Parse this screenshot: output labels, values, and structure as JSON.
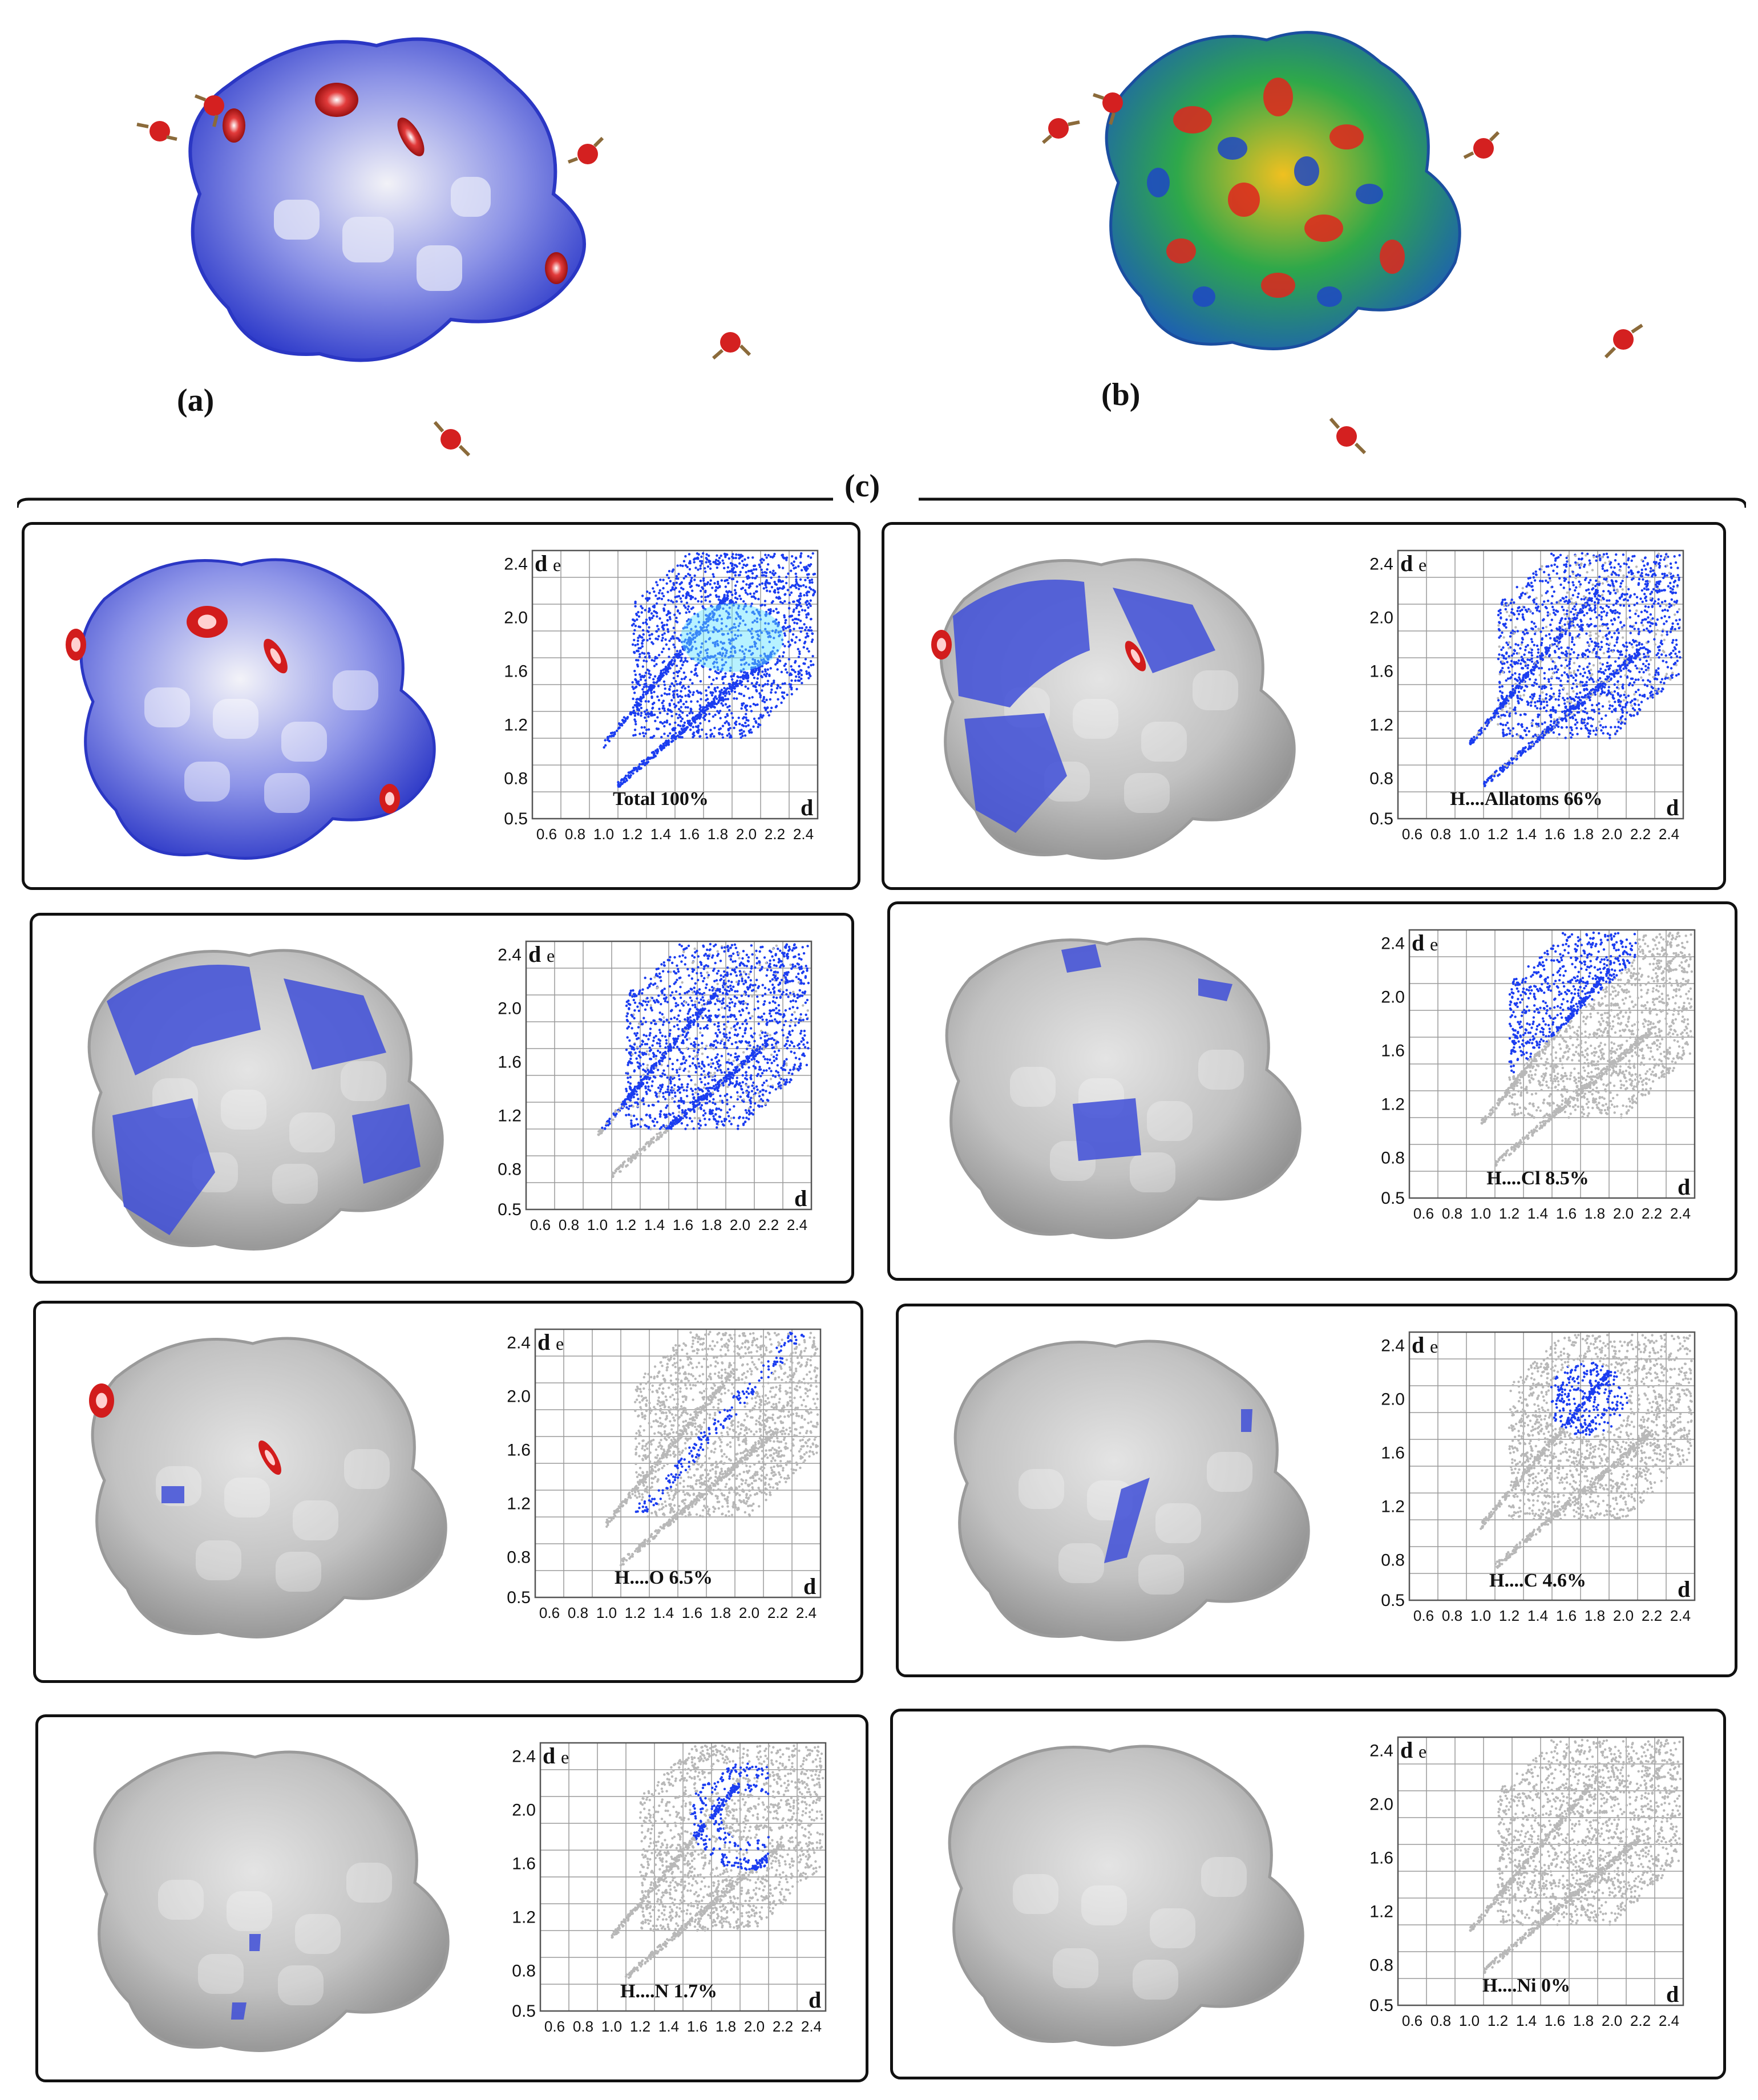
{
  "figure": {
    "top_labels": {
      "a": "(a)",
      "b": "(b)",
      "c": "(c)"
    },
    "colors": {
      "dnorm_surface": "#3f4fd8",
      "dnorm_hot": "#d21c1c",
      "shape_index_green": "#2ea84a",
      "grey_surface": "#bdbdbd",
      "fingerprint_blue": "#1b3df0",
      "fingerprint_grey": "#b8b8b8"
    }
  },
  "chart_data": [
    {
      "type": "scatter",
      "label": "Total 100%",
      "highlight": "all",
      "x_ticks": [
        "0.6",
        "0.8",
        "1.0",
        "1.2",
        "1.4",
        "1.6",
        "1.8",
        "2.0",
        "2.2",
        "2.4"
      ],
      "y_ticks": [
        "0.5",
        "0.8",
        "1.2",
        "1.6",
        "2.0",
        "2.4"
      ],
      "xlim": [
        0.5,
        2.5
      ],
      "ylim": [
        0.5,
        2.5
      ]
    },
    {
      "type": "scatter",
      "label": "H....Allatoms 66%",
      "highlight": "broad",
      "x_ticks": [
        "0.6",
        "0.8",
        "1.0",
        "1.2",
        "1.4",
        "1.6",
        "1.8",
        "2.0",
        "2.2",
        "2.4"
      ],
      "y_ticks": [
        "0.5",
        "0.8",
        "1.2",
        "1.6",
        "2.0",
        "2.4"
      ],
      "xlim": [
        0.5,
        2.5
      ],
      "ylim": [
        0.5,
        2.5
      ]
    },
    {
      "type": "scatter",
      "label": "",
      "highlight": "broad-upper",
      "x_ticks": [
        "0.6",
        "0.8",
        "1.0",
        "1.2",
        "1.4",
        "1.6",
        "1.8",
        "2.0",
        "2.2",
        "2.4"
      ],
      "y_ticks": [
        "0.5",
        "0.8",
        "1.2",
        "1.6",
        "2.0",
        "2.4"
      ],
      "xlim": [
        0.5,
        2.5
      ],
      "ylim": [
        0.5,
        2.5
      ]
    },
    {
      "type": "scatter",
      "label": "H....Cl 8.5%",
      "highlight": "upper-wing",
      "x_ticks": [
        "0.6",
        "0.8",
        "1.0",
        "1.2",
        "1.4",
        "1.6",
        "1.8",
        "2.0",
        "2.2",
        "2.4"
      ],
      "y_ticks": [
        "0.5",
        "0.8",
        "1.2",
        "1.6",
        "2.0",
        "2.4"
      ],
      "xlim": [
        0.5,
        2.5
      ],
      "ylim": [
        0.5,
        2.5
      ]
    },
    {
      "type": "scatter",
      "label": "H....O 6.5%",
      "highlight": "spike",
      "x_ticks": [
        "0.6",
        "0.8",
        "1.0",
        "1.2",
        "1.4",
        "1.6",
        "1.8",
        "2.0",
        "2.2",
        "2.4"
      ],
      "y_ticks": [
        "0.5",
        "0.8",
        "1.2",
        "1.6",
        "2.0",
        "2.4"
      ],
      "xlim": [
        0.5,
        2.5
      ],
      "ylim": [
        0.5,
        2.5
      ]
    },
    {
      "type": "scatter",
      "label": "H....C 4.6%",
      "highlight": "blob",
      "x_ticks": [
        "0.6",
        "0.8",
        "1.0",
        "1.2",
        "1.4",
        "1.6",
        "1.8",
        "2.0",
        "2.2",
        "2.4"
      ],
      "y_ticks": [
        "0.5",
        "0.8",
        "1.2",
        "1.6",
        "2.0",
        "2.4"
      ],
      "xlim": [
        0.5,
        2.5
      ],
      "ylim": [
        0.5,
        2.5
      ]
    },
    {
      "type": "scatter",
      "label": "H....N 1.7%",
      "highlight": "arcs",
      "x_ticks": [
        "0.6",
        "0.8",
        "1.0",
        "1.2",
        "1.4",
        "1.6",
        "1.8",
        "2.0",
        "2.2",
        "2.4"
      ],
      "y_ticks": [
        "0.5",
        "0.8",
        "1.2",
        "1.6",
        "2.0",
        "2.4"
      ],
      "xlim": [
        0.5,
        2.5
      ],
      "ylim": [
        0.5,
        2.5
      ]
    },
    {
      "type": "scatter",
      "label": "H....Ni 0%",
      "highlight": "none",
      "x_ticks": [
        "0.6",
        "0.8",
        "1.0",
        "1.2",
        "1.4",
        "1.6",
        "1.8",
        "2.0",
        "2.2",
        "2.4"
      ],
      "y_ticks": [
        "0.5",
        "0.8",
        "1.2",
        "1.6",
        "2.0",
        "2.4"
      ],
      "xlim": [
        0.5,
        2.5
      ],
      "ylim": [
        0.5,
        2.5
      ]
    }
  ]
}
